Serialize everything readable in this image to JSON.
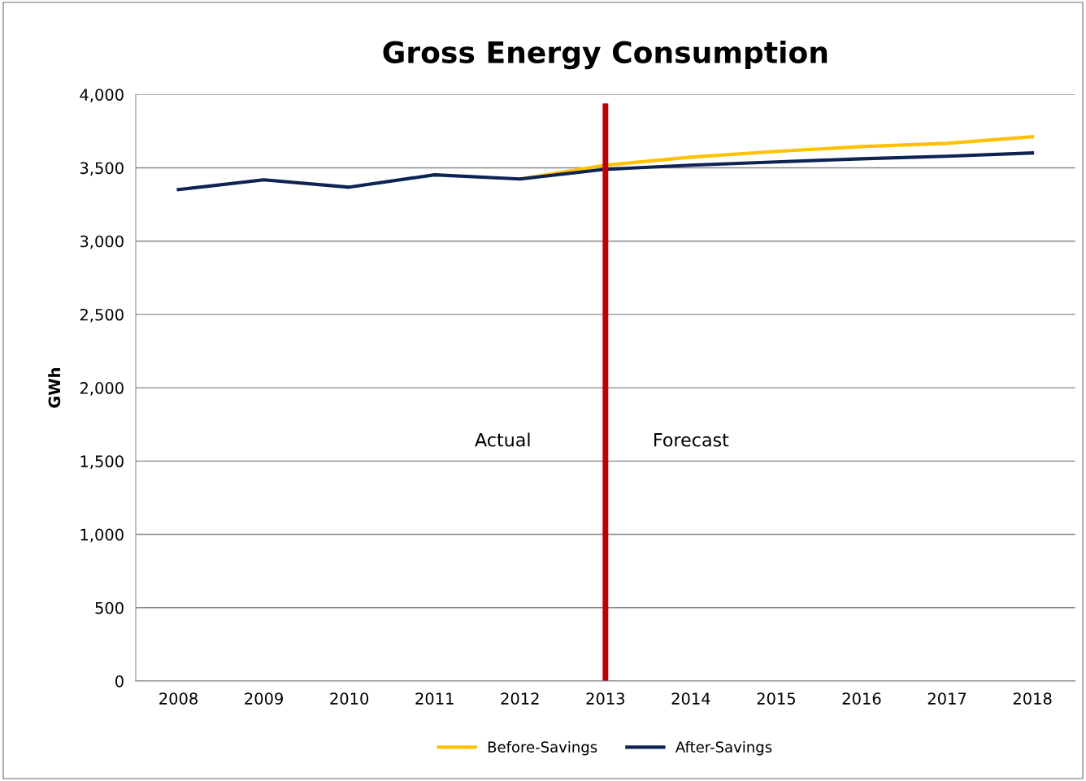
{
  "chart_data": {
    "type": "line",
    "title": "Gross Energy Consumption",
    "ylabel": "GWh",
    "categories": [
      "2008",
      "2009",
      "2010",
      "2011",
      "2012",
      "2013",
      "2014",
      "2015",
      "2016",
      "2017",
      "2018"
    ],
    "series": [
      {
        "name": "Before-Savings",
        "color": "#ffc000",
        "values": [
          null,
          null,
          null,
          null,
          3424,
          3518,
          3573,
          3612,
          3645,
          3667,
          3712
        ]
      },
      {
        "name": "After-Savings",
        "color": "#0d2352",
        "values": [
          3352,
          3418,
          3368,
          3452,
          3424,
          3490,
          3518,
          3540,
          3562,
          3579,
          3601
        ]
      }
    ],
    "ylim": [
      0,
      4000
    ],
    "yticks": [
      {
        "value": 0,
        "label": "0"
      },
      {
        "value": 500,
        "label": "500"
      },
      {
        "value": 1000,
        "label": "1,000"
      },
      {
        "value": 1500,
        "label": "1,500"
      },
      {
        "value": 2000,
        "label": "2,000"
      },
      {
        "value": 2500,
        "label": "2,500"
      },
      {
        "value": 3000,
        "label": "3,000"
      },
      {
        "value": 3500,
        "label": "3,500"
      },
      {
        "value": 4000,
        "label": "4,000"
      }
    ],
    "grid": "y",
    "legend": "bottom",
    "marker": "none",
    "line_style": "solid",
    "ref_lines": [
      {
        "axis": "x",
        "value": "2013",
        "color": "#c00000"
      }
    ],
    "annotations": [
      "Actual",
      "Forecast"
    ]
  }
}
